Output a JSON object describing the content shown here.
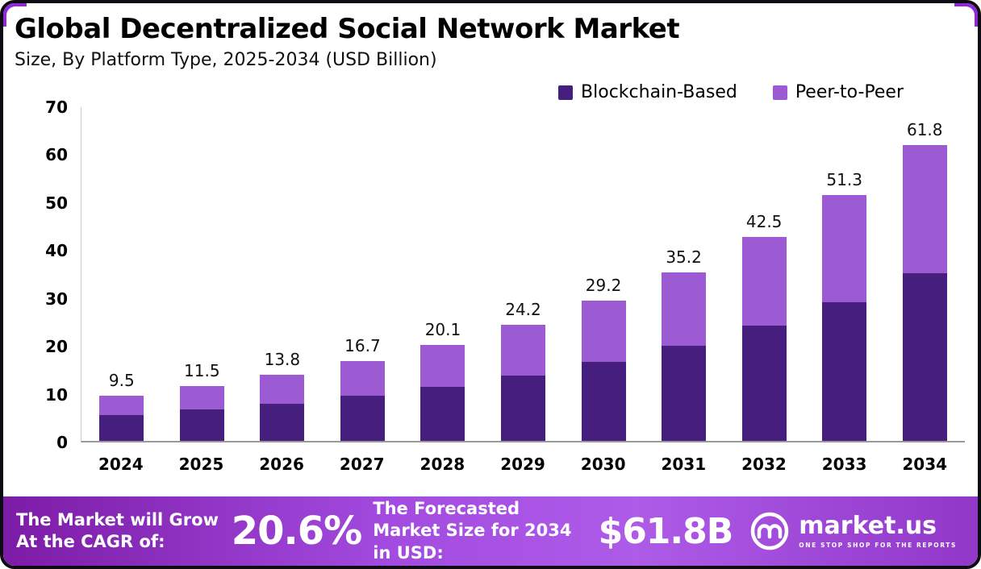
{
  "meta": {
    "title": "Global Decentralized Social Network Market",
    "subtitle": "Size, By Platform Type, 2025-2034 (USD Billion)"
  },
  "chart_data": {
    "type": "bar",
    "stacked": true,
    "title": "Global Decentralized Social Network Market Size, By Platform Type, 2025-2034 (USD Billion)",
    "categories": [
      "2024",
      "2025",
      "2026",
      "2027",
      "2028",
      "2029",
      "2030",
      "2031",
      "2032",
      "2033",
      "2034"
    ],
    "series": [
      {
        "name": "Blockchain-Based",
        "color": "#461E7D",
        "values": [
          5.4,
          6.5,
          7.8,
          9.4,
          11.3,
          13.7,
          16.5,
          19.9,
          24.0,
          29.0,
          35.0
        ]
      },
      {
        "name": "Peer-to-Peer",
        "color": "#9C5BD2",
        "values": [
          4.1,
          5.0,
          6.0,
          7.3,
          8.8,
          10.5,
          12.7,
          15.3,
          18.5,
          22.3,
          26.8
        ]
      }
    ],
    "totals": [
      9.5,
      11.5,
      13.8,
      16.7,
      20.1,
      24.2,
      29.2,
      35.2,
      42.5,
      51.3,
      61.8
    ],
    "total_labels": [
      "9.5",
      "11.5",
      "13.8",
      "16.7",
      "20.1",
      "24.2",
      "29.2",
      "35.2",
      "42.5",
      "51.3",
      "61.8"
    ],
    "xlabel": "",
    "ylabel": "",
    "ylim": [
      0,
      70
    ],
    "yticks": [
      0,
      10,
      20,
      30,
      40,
      50,
      60,
      70
    ],
    "grid": false,
    "legend_position": "top-right"
  },
  "footer": {
    "cagr_label": "The Market will Grow At the CAGR of:",
    "cagr_value": "20.6%",
    "forecast_label": "The Forecasted Market Size for 2034 in USD:",
    "forecast_value": "$61.8B",
    "brand": {
      "name": "market.us",
      "tagline": "ONE STOP SHOP FOR THE REPORTS"
    }
  },
  "colors": {
    "bar_dark": "#461E7D",
    "bar_light": "#9C5BD2",
    "footer_gradient_left": "#7C1BA6",
    "footer_gradient_right": "#9137C8",
    "frame_border": "#0D0B14",
    "corner_accent": "#8A2BD6"
  }
}
